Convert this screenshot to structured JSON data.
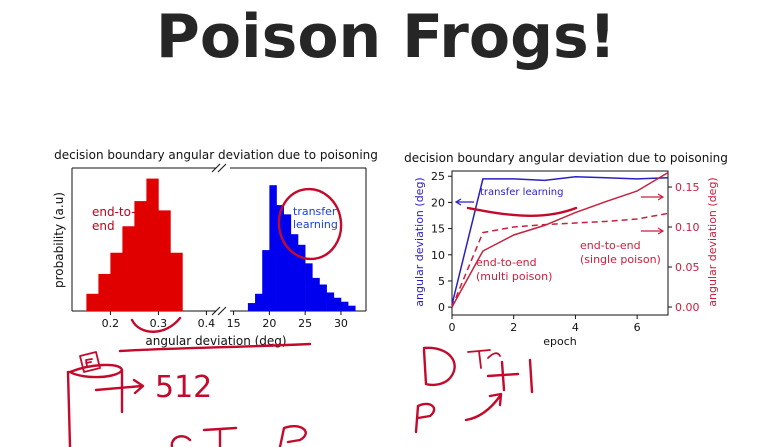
{
  "slide": {
    "title": "Poison Frogs!"
  },
  "colors": {
    "end_to_end": "#e00000",
    "transfer": "#0000ee",
    "ink": "#c40a2c",
    "axis_left": "#2a1fc4",
    "axis_right": "#c8203e",
    "title": "#262626"
  },
  "chart_data": [
    {
      "type": "bar",
      "title": "decision boundary angular deviation due to poisoning",
      "xlabel": "angular deviation (deg)",
      "ylabel": "probability (a.u)",
      "grid": false,
      "broken_x_axis": true,
      "panels": [
        {
          "name": "end-to-end",
          "label_text": "end-to-\nend",
          "xlim": [
            0.12,
            0.42
          ],
          "xticks": [
            "0.2",
            "0.3",
            "0.4"
          ],
          "xtick_values": [
            0.2,
            0.3,
            0.4
          ],
          "bin_edges": [
            0.15,
            0.175,
            0.2,
            0.225,
            0.25,
            0.275,
            0.3,
            0.325,
            0.35
          ],
          "values": [
            0.13,
            0.28,
            0.44,
            0.64,
            0.83,
            1.0,
            0.76,
            0.44
          ]
        },
        {
          "name": "transfer learning",
          "label_text": "transfer\nlearning",
          "xlim": [
            14.5,
            33.5
          ],
          "xticks": [
            "15",
            "20",
            "25",
            "30"
          ],
          "xtick_values": [
            15,
            20,
            25,
            30
          ],
          "bin_edges": [
            17,
            18,
            19,
            20,
            21,
            22,
            23,
            24,
            25,
            26,
            27,
            28,
            29,
            30,
            31,
            32
          ],
          "values": [
            0.06,
            0.13,
            0.46,
            0.95,
            0.8,
            0.73,
            0.58,
            0.5,
            0.36,
            0.25,
            0.2,
            0.14,
            0.1,
            0.07,
            0.04
          ]
        }
      ],
      "ylim": [
        0,
        1.08
      ]
    },
    {
      "type": "line",
      "title": "decision boundary angular deviation due to poisoning",
      "xlabel": "epoch",
      "ylabel": "angular deviation (deg)",
      "ylabel_right": "angular deviation (deg)",
      "grid": false,
      "xlim": [
        0,
        7
      ],
      "xticks": [
        "0",
        "2",
        "4",
        "6"
      ],
      "ylim": [
        -1.5,
        26
      ],
      "yticks": [
        "0",
        "5",
        "10",
        "15",
        "20",
        "25"
      ],
      "ylim_right": [
        -0.01,
        0.17
      ],
      "yticks_right": [
        "0.00",
        "0.05",
        "0.10",
        "0.15"
      ],
      "series": [
        {
          "name": "transfer learning",
          "axis": "left",
          "x": [
            0,
            1,
            2,
            3,
            4,
            5,
            6,
            7
          ],
          "y": [
            0.5,
            24.5,
            24.5,
            24.2,
            24.9,
            24.7,
            24.5,
            24.7
          ]
        },
        {
          "name": "end-to-end\n(multi poison)",
          "axis": "right",
          "style": "dashed",
          "x": [
            0,
            1,
            2,
            3,
            4,
            5,
            6,
            7
          ],
          "y": [
            0.0,
            0.093,
            0.1,
            0.103,
            0.105,
            0.107,
            0.11,
            0.117
          ]
        },
        {
          "name": "end-to-end\n(single poison)",
          "axis": "right",
          "style": "solid",
          "x": [
            0,
            1,
            2,
            3,
            4,
            5,
            6,
            7
          ],
          "y": [
            0.0,
            0.07,
            0.09,
            0.102,
            0.118,
            0.132,
            0.145,
            0.168
          ]
        }
      ]
    }
  ],
  "handwriting": {
    "left_number": "512",
    "right_expr": "+1"
  }
}
